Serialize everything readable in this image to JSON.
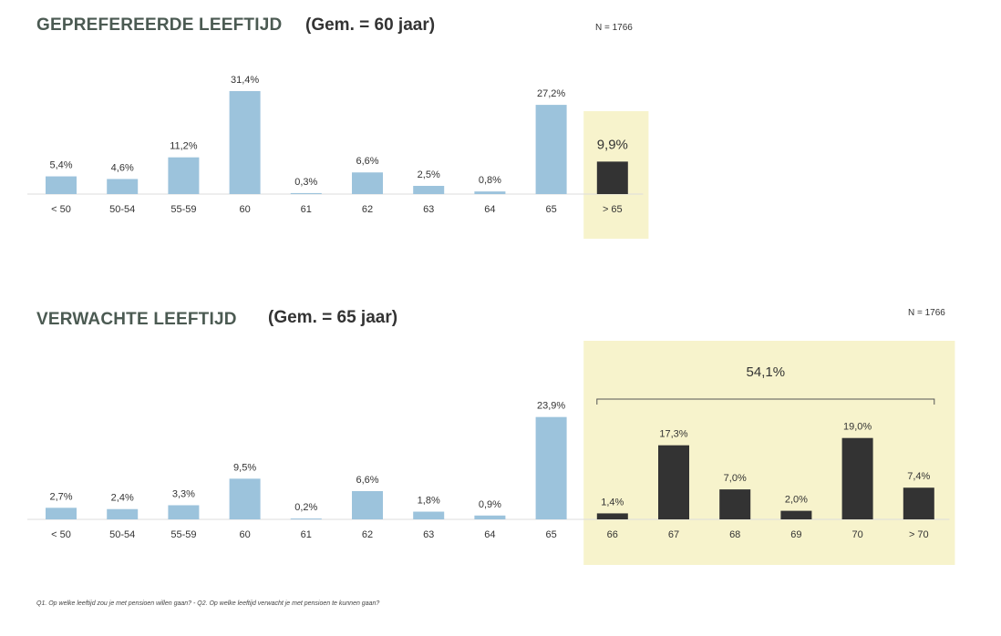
{
  "colors": {
    "bar_light": "#9cc3dc",
    "bar_dark": "#333333",
    "highlight_bg": "#f7f3cc",
    "baseline": "#dcdcdc"
  },
  "chart1": {
    "title": "GEPREFEREERDE LEEFTIJD",
    "subtitle": "(Gem. = 60 jaar)",
    "n_label": "N = 1766"
  },
  "chart2": {
    "title": "VERWACHTE LEEFTIJD",
    "subtitle": "(Gem. = 65 jaar)",
    "n_label": "N = 1766",
    "bracket_label": "54,1%"
  },
  "footnote": "Q1. Op welke leeftijd zou je met pensioen willen gaan? - Q2. Op welke leeftijd verwacht je met pensioen te kunnen gaan?",
  "chart_data": [
    {
      "type": "bar",
      "title": "GEPREFEREERDE LEEFTIJD",
      "categories": [
        "< 50",
        "50-54",
        "55-59",
        "60",
        "61",
        "62",
        "63",
        "64",
        "65",
        "> 65"
      ],
      "values": [
        5.4,
        4.6,
        11.2,
        31.4,
        0.3,
        6.6,
        2.5,
        0.8,
        27.2,
        9.9
      ],
      "value_labels": [
        "5,4%",
        "4,6%",
        "11,2%",
        "31,4%",
        "0,3%",
        "6,6%",
        "2,5%",
        "0,8%",
        "27,2%",
        "9,9%"
      ],
      "highlight_categories": [
        "> 65"
      ],
      "xlabel": "",
      "ylabel": "",
      "grid": false
    },
    {
      "type": "bar",
      "title": "VERWACHTE LEEFTIJD",
      "categories": [
        "< 50",
        "50-54",
        "55-59",
        "60",
        "61",
        "62",
        "63",
        "64",
        "65",
        "66",
        "67",
        "68",
        "69",
        "70",
        "> 70"
      ],
      "values": [
        2.7,
        2.4,
        3.3,
        9.5,
        0.2,
        6.6,
        1.8,
        0.9,
        23.9,
        1.4,
        17.3,
        7.0,
        2.0,
        19.0,
        7.4
      ],
      "value_labels": [
        "2,7%",
        "2,4%",
        "3,3%",
        "9,5%",
        "0,2%",
        "6,6%",
        "1,8%",
        "0,9%",
        "23,9%",
        "1,4%",
        "17,3%",
        "7,0%",
        "2,0%",
        "19,0%",
        "7,4%"
      ],
      "highlight_categories": [
        "66",
        "67",
        "68",
        "69",
        "70",
        "> 70"
      ],
      "xlabel": "",
      "ylabel": "",
      "grid": false
    }
  ]
}
